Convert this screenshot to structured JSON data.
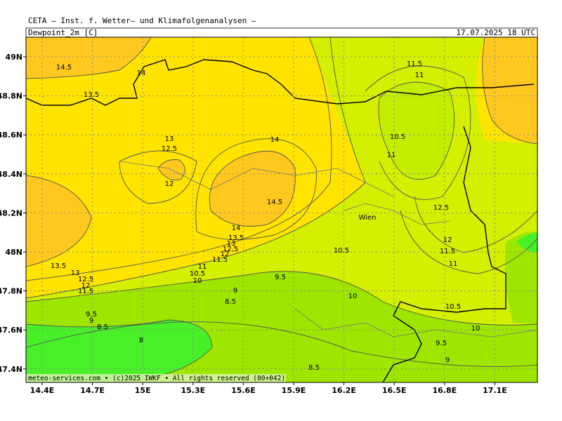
{
  "header": {
    "title": "CETA — Inst. f. Wetter— und Klimafolgenanalysen —",
    "field": "Dewpoint_2m [C]",
    "time": "17.07.2025 18 UTC"
  },
  "lat_labels": [
    "49N",
    "48.8N",
    "48.6N",
    "48.4N",
    "48.2N",
    "48N",
    "47.8N",
    "47.6N",
    "47.4N"
  ],
  "lon_labels": [
    "14.4E",
    "14.7E",
    "15E",
    "15.3E",
    "15.6E",
    "15.9E",
    "16.2E",
    "16.5E",
    "16.8E",
    "17.1E"
  ],
  "contour_labels": [
    "14.5",
    "14",
    "13.5",
    "13",
    "12.5",
    "12",
    "14",
    "14.5",
    "14",
    "13.5",
    "13",
    "12.5",
    "12",
    "11.5",
    "11",
    "10.5",
    "10",
    "9",
    "8.5",
    "9.5",
    "10.5",
    "10",
    "11.5",
    "11",
    "10.5",
    "11",
    "12.5",
    "12",
    "11.5",
    "11",
    "10.5",
    "10",
    "9.5",
    "9",
    "8.5",
    "13.5",
    "13",
    "12.5",
    "12",
    "11.5",
    "9.5",
    "9",
    "8.5",
    "8"
  ],
  "city": "Wien",
  "footer": "meteo-services.com • (c)2025 IWKF • All rights reserved (00+042)"
}
